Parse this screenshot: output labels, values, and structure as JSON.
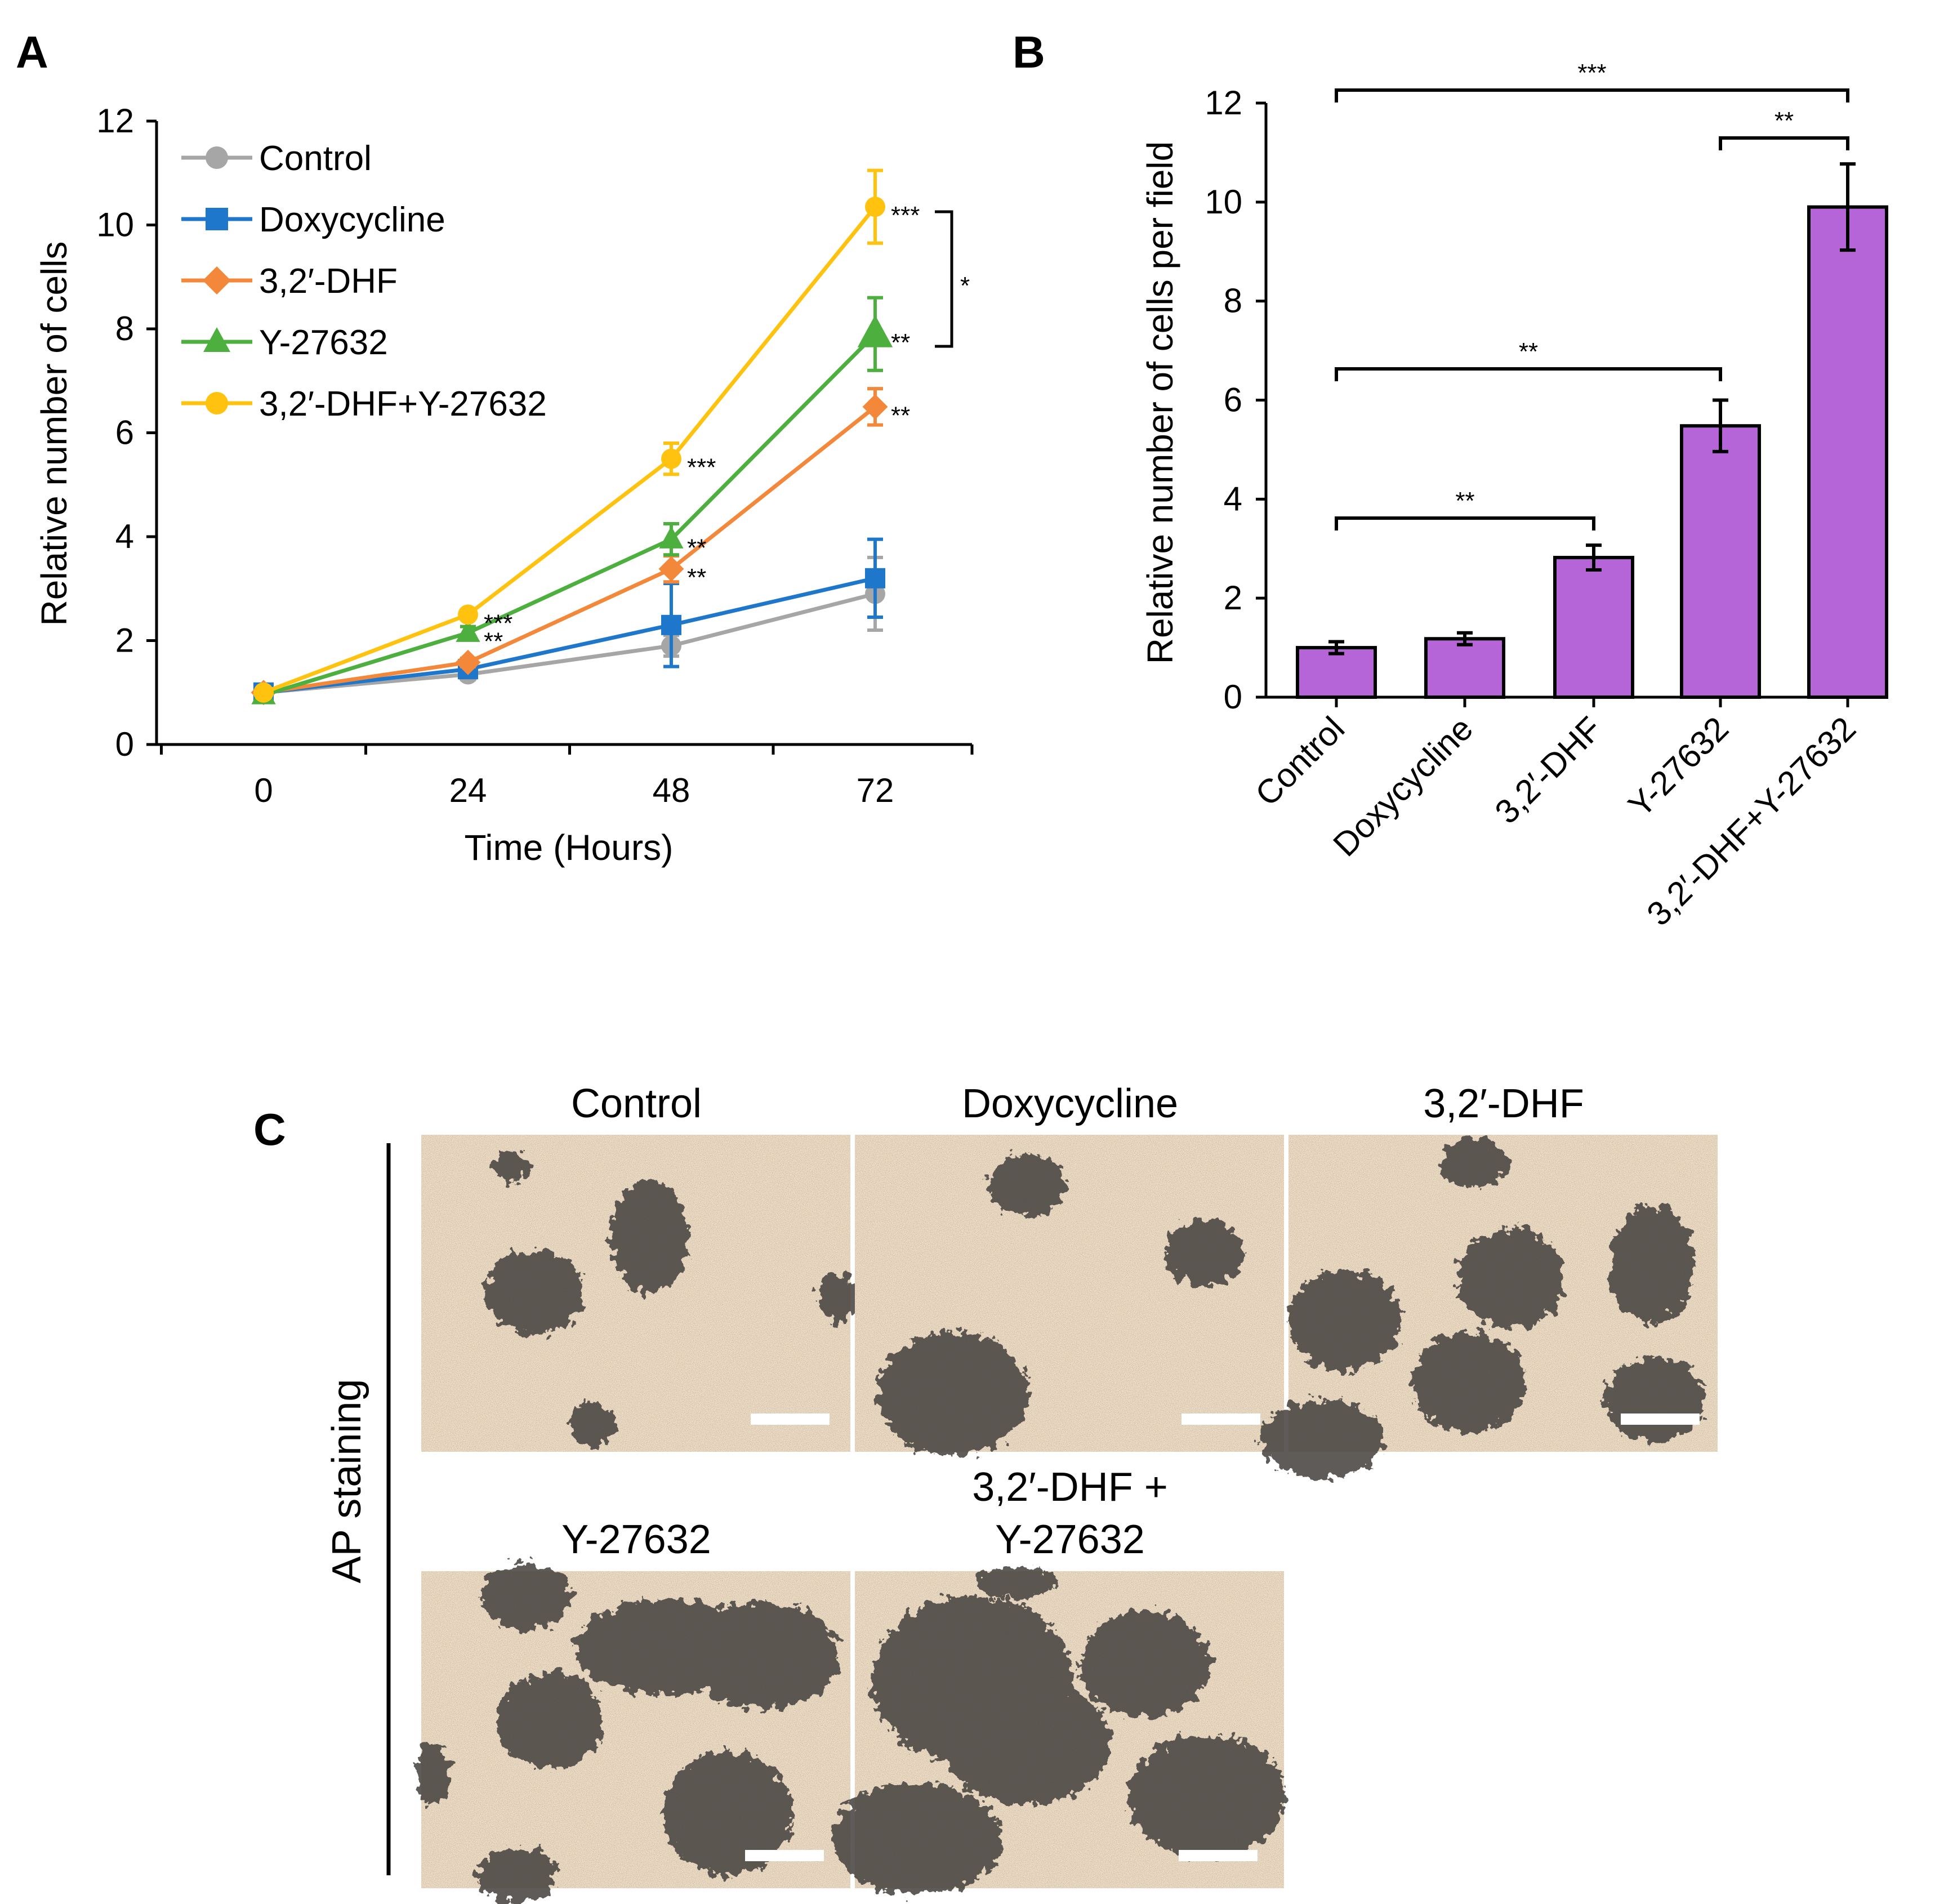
{
  "panel_labels": {
    "a": "A",
    "b": "B",
    "c": "C"
  },
  "colors": {
    "control": "#a6a6a6",
    "doxycycline": "#1f77cc",
    "dhf": "#f4883a",
    "y27632": "#4caf3e",
    "combo": "#ffc30f",
    "bar_fill": "#b565d8",
    "micro_bg": "#efddc4",
    "micro_colony": "#4a4542"
  },
  "chart_data": [
    {
      "type": "line",
      "panel": "A",
      "title": "",
      "xlabel": "Time (Hours)",
      "ylabel": "Relative number of cells",
      "x": [
        0,
        24,
        48,
        72
      ],
      "x_tick_labels": [
        "0",
        "24",
        "48",
        "72"
      ],
      "ylim": [
        0,
        12
      ],
      "y_ticks": [
        0,
        2,
        4,
        6,
        8,
        10,
        12
      ],
      "y_tick_labels": [
        "0",
        "2",
        "4",
        "6",
        "8",
        "10",
        "12"
      ],
      "grid": false,
      "legend_position": "top-left",
      "series": [
        {
          "name": "Control",
          "key": "control",
          "marker": "circle",
          "values": [
            1.0,
            1.35,
            1.9,
            2.9
          ],
          "errors": [
            0.05,
            0.1,
            0.2,
            0.7
          ],
          "labels": [
            "",
            "",
            "",
            ""
          ]
        },
        {
          "name": "Doxycycline",
          "key": "doxycycline",
          "marker": "square",
          "values": [
            1.0,
            1.45,
            2.3,
            3.2
          ],
          "errors": [
            0.05,
            0.1,
            0.8,
            0.75
          ],
          "labels": [
            "",
            "",
            "",
            ""
          ]
        },
        {
          "name": "3,2′-DHF",
          "key": "dhf",
          "marker": "diamond",
          "values": [
            1.0,
            1.58,
            3.38,
            6.5
          ],
          "errors": [
            0.05,
            0.08,
            0.25,
            0.35
          ],
          "labels": [
            "",
            "",
            "**",
            "**"
          ]
        },
        {
          "name": "Y-27632",
          "key": "y27632",
          "marker": "triangle",
          "values": [
            0.95,
            2.15,
            3.95,
            7.9
          ],
          "errors": [
            0.05,
            0.12,
            0.3,
            0.7
          ],
          "labels": [
            "",
            "**",
            "**",
            "**"
          ]
        },
        {
          "name": "3,2′-DHF+Y-27632",
          "key": "combo",
          "marker": "circle",
          "values": [
            1.0,
            2.5,
            5.5,
            10.35
          ],
          "errors": [
            0.05,
            0.08,
            0.3,
            0.7
          ],
          "labels": [
            "",
            "***",
            "***",
            "***"
          ]
        }
      ],
      "bracket_label": "*"
    },
    {
      "type": "bar",
      "panel": "B",
      "title": "",
      "xlabel": "",
      "ylabel": "Relative number of cells per field",
      "categories": [
        "Control",
        "Doxycycline",
        "3,2′-DHF",
        "Y-27632",
        "3,2′-DHF+Y-27632"
      ],
      "values": [
        1.0,
        1.18,
        2.82,
        5.48,
        9.9
      ],
      "errors": [
        0.12,
        0.12,
        0.25,
        0.52,
        0.87
      ],
      "ylim": [
        0,
        12
      ],
      "y_ticks": [
        0,
        2,
        4,
        6,
        8,
        10,
        12
      ],
      "y_tick_labels": [
        "0",
        "2",
        "4",
        "6",
        "8",
        "10",
        "12"
      ],
      "grid": false,
      "brackets": [
        {
          "from": 0,
          "to": 4,
          "label": "***"
        },
        {
          "from": 3,
          "to": 4,
          "label": "**"
        },
        {
          "from": 0,
          "to": 3,
          "label": "**"
        },
        {
          "from": 0,
          "to": 2,
          "label": "**"
        }
      ]
    }
  ],
  "panel_c": {
    "side_label": "AP staining",
    "images": [
      {
        "title": "Control"
      },
      {
        "title": "Doxycycline"
      },
      {
        "title": "3,2′-DHF"
      },
      {
        "title": "Y-27632"
      },
      {
        "title_line1": "3,2′-DHF +",
        "title_line2": "Y-27632"
      }
    ]
  }
}
